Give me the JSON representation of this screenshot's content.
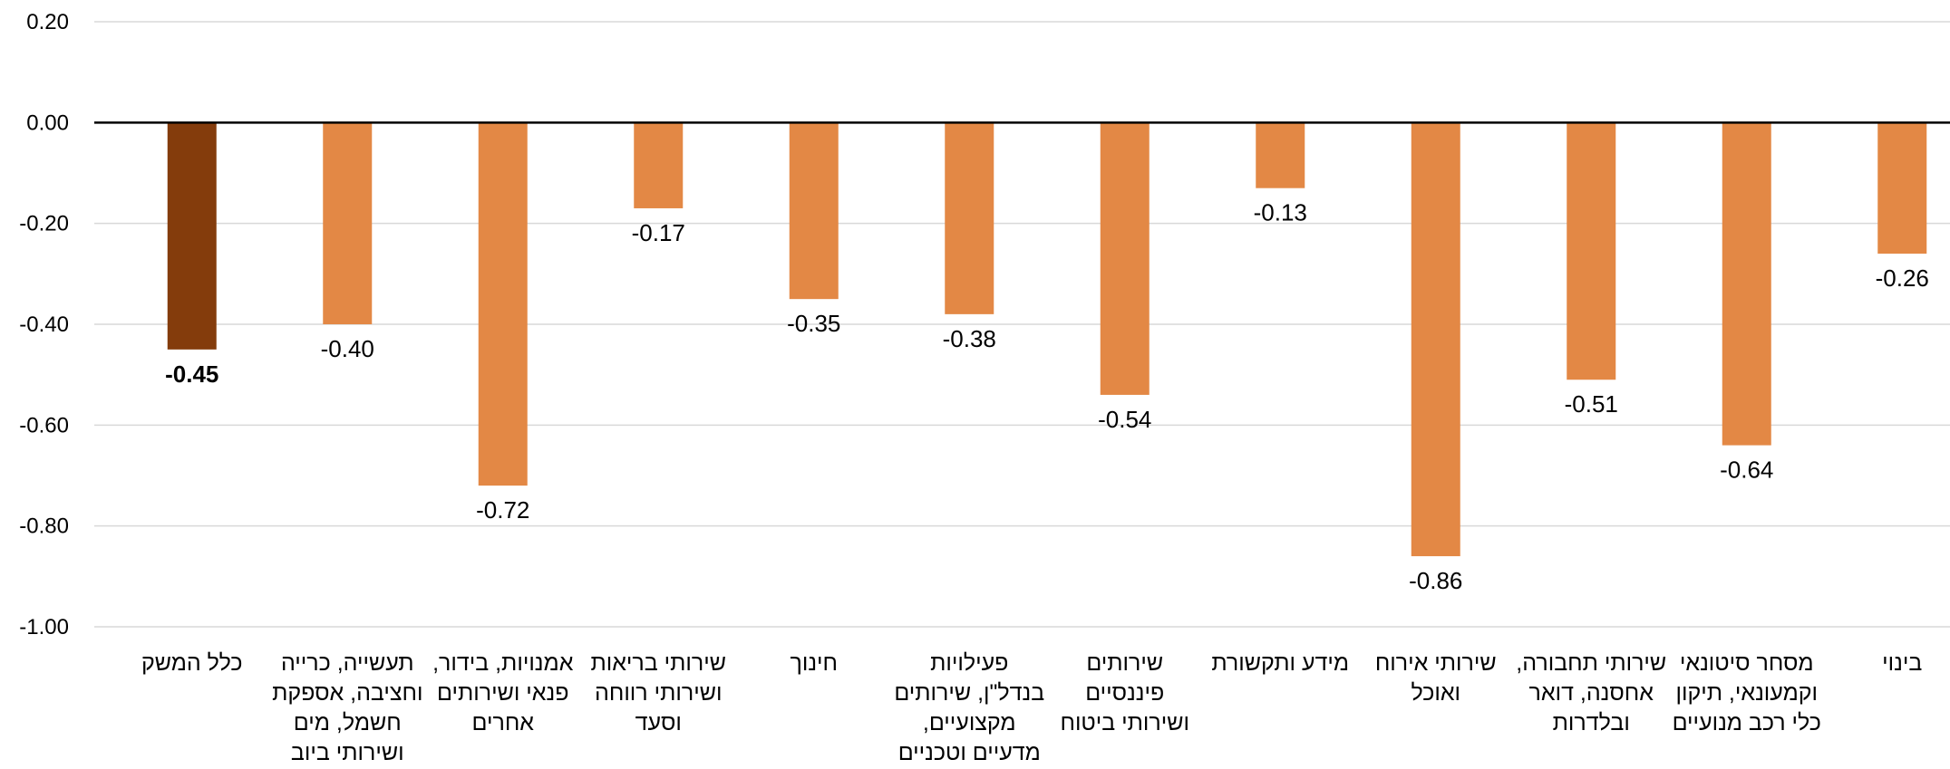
{
  "chart_data": {
    "type": "bar",
    "title": "",
    "xlabel": "",
    "ylabel": "",
    "ylim": [
      -1.0,
      0.2
    ],
    "yticks": [
      0.2,
      0.0,
      -0.2,
      -0.4,
      -0.6,
      -0.8,
      -1.0
    ],
    "ytick_labels": [
      "0.20",
      "0.00",
      "-0.20",
      "-0.40",
      "-0.60",
      "-0.80",
      "-1.00"
    ],
    "grid": true,
    "legend": "none",
    "categories": [
      [
        "כלל המשק"
      ],
      [
        "תעשייה, כרייה",
        "וחציבה, אספקת",
        "חשמל, מים",
        "ושירותי ביוב"
      ],
      [
        "אמנויות, בידור,",
        "פנאי ושירותים",
        "אחרים"
      ],
      [
        "שירותי בריאות",
        "ושירותי רווחה",
        "וסעד"
      ],
      [
        "חינוך"
      ],
      [
        "פעילויות",
        "בנדל\"ן, שירותים",
        "מקצועיים,",
        "מדעיים וטכניים"
      ],
      [
        "שירותים",
        "פיננסיים",
        "ושירותי ביטוח"
      ],
      [
        "מידע ותקשורת"
      ],
      [
        "שירותי אירוח",
        "ואוכל"
      ],
      [
        "שירותי תחבורה,",
        "אחסנה, דואר",
        "ובלדרות"
      ],
      [
        "מסחר סיטונאי",
        "וקמעונאי, תיקון",
        "כלי רכב מנועיים"
      ],
      [
        "בינוי"
      ]
    ],
    "values": [
      -0.45,
      -0.4,
      -0.72,
      -0.17,
      -0.35,
      -0.38,
      -0.54,
      -0.13,
      -0.86,
      -0.51,
      -0.64,
      -0.26
    ],
    "value_labels": [
      "-0.45",
      "-0.40",
      "-0.72",
      "-0.17",
      "-0.35",
      "-0.38",
      "-0.54",
      "-0.13",
      "-0.86",
      "-0.51",
      "-0.64",
      "-0.26"
    ],
    "highlight_index": 0,
    "colors": {
      "highlight": "#843C0C",
      "bar": "#E38845",
      "grid": "#D9D9D9",
      "zero_line": "#000000"
    }
  }
}
